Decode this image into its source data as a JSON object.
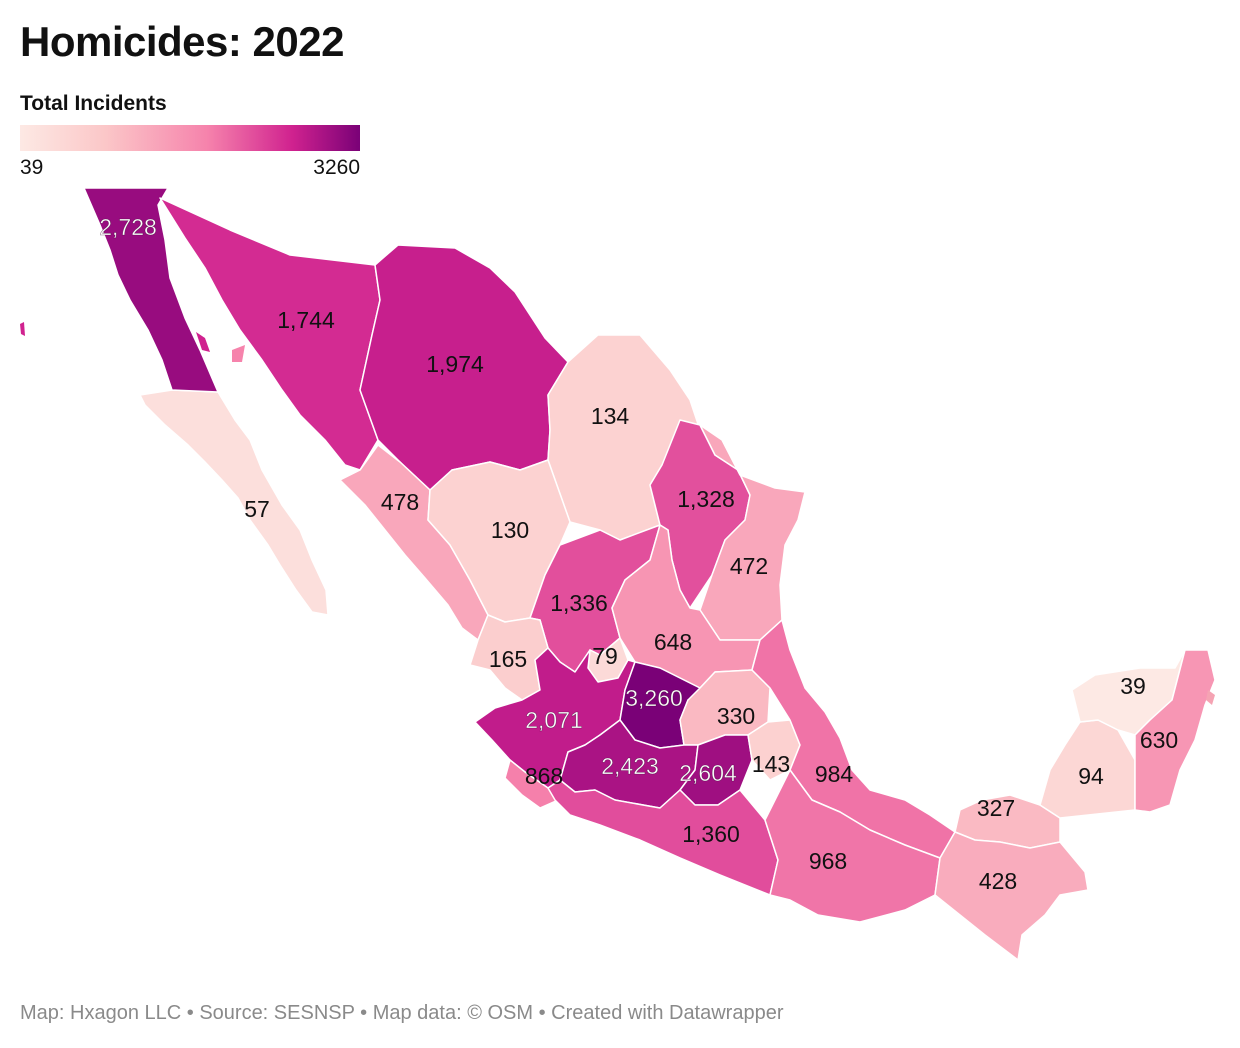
{
  "title": "Homicides: 2022",
  "legend": {
    "title": "Total Incidents",
    "min": "39",
    "max": "3260",
    "colors": [
      "#fde9e4",
      "#fbc7c8",
      "#f683ac",
      "#d0228f",
      "#7a0177"
    ]
  },
  "footer": "Map: Hxagon LLC • Source: SESNSP • Map data: © OSM • Created with Datawrapper",
  "regions": [
    {
      "id": "baja-california",
      "label": "2,728",
      "value": 2728
    },
    {
      "id": "baja-california-sur",
      "label": "57",
      "value": 57
    },
    {
      "id": "sonora",
      "label": "1,744",
      "value": 1744
    },
    {
      "id": "chihuahua",
      "label": "1,974",
      "value": 1974
    },
    {
      "id": "coahuila",
      "label": "134",
      "value": 134
    },
    {
      "id": "nuevo-leon",
      "label": "1,328",
      "value": 1328
    },
    {
      "id": "tamaulipas",
      "label": "472",
      "value": 472
    },
    {
      "id": "sinaloa",
      "label": "478",
      "value": 478
    },
    {
      "id": "durango",
      "label": "130",
      "value": 130
    },
    {
      "id": "zacatecas",
      "label": "1,336",
      "value": 1336
    },
    {
      "id": "san-luis-potosi",
      "label": "648",
      "value": 648
    },
    {
      "id": "nayarit",
      "label": "165",
      "value": 165
    },
    {
      "id": "aguascalientes",
      "label": "79",
      "value": 79
    },
    {
      "id": "guanajuato",
      "label": "3,260",
      "value": 3260
    },
    {
      "id": "queretaro",
      "label": "330",
      "value": 330
    },
    {
      "id": "jalisco",
      "label": "2,071",
      "value": 2071
    },
    {
      "id": "colima",
      "label": "868",
      "value": 868
    },
    {
      "id": "michoacan",
      "label": "2,423",
      "value": 2423
    },
    {
      "id": "estado-de-mexico",
      "label": "2,604",
      "value": 2604
    },
    {
      "id": "hidalgo",
      "label": "143",
      "value": 143
    },
    {
      "id": "veracruz",
      "label": "984",
      "value": 984
    },
    {
      "id": "guerrero",
      "label": "1,360",
      "value": 1360
    },
    {
      "id": "oaxaca",
      "label": "968",
      "value": 968
    },
    {
      "id": "tabasco",
      "label": "327",
      "value": 327
    },
    {
      "id": "chiapas",
      "label": "428",
      "value": 428
    },
    {
      "id": "yucatan",
      "label": "39",
      "value": 39
    },
    {
      "id": "campeche",
      "label": "94",
      "value": 94
    },
    {
      "id": "quintana-roo",
      "label": "630",
      "value": 630
    }
  ]
}
